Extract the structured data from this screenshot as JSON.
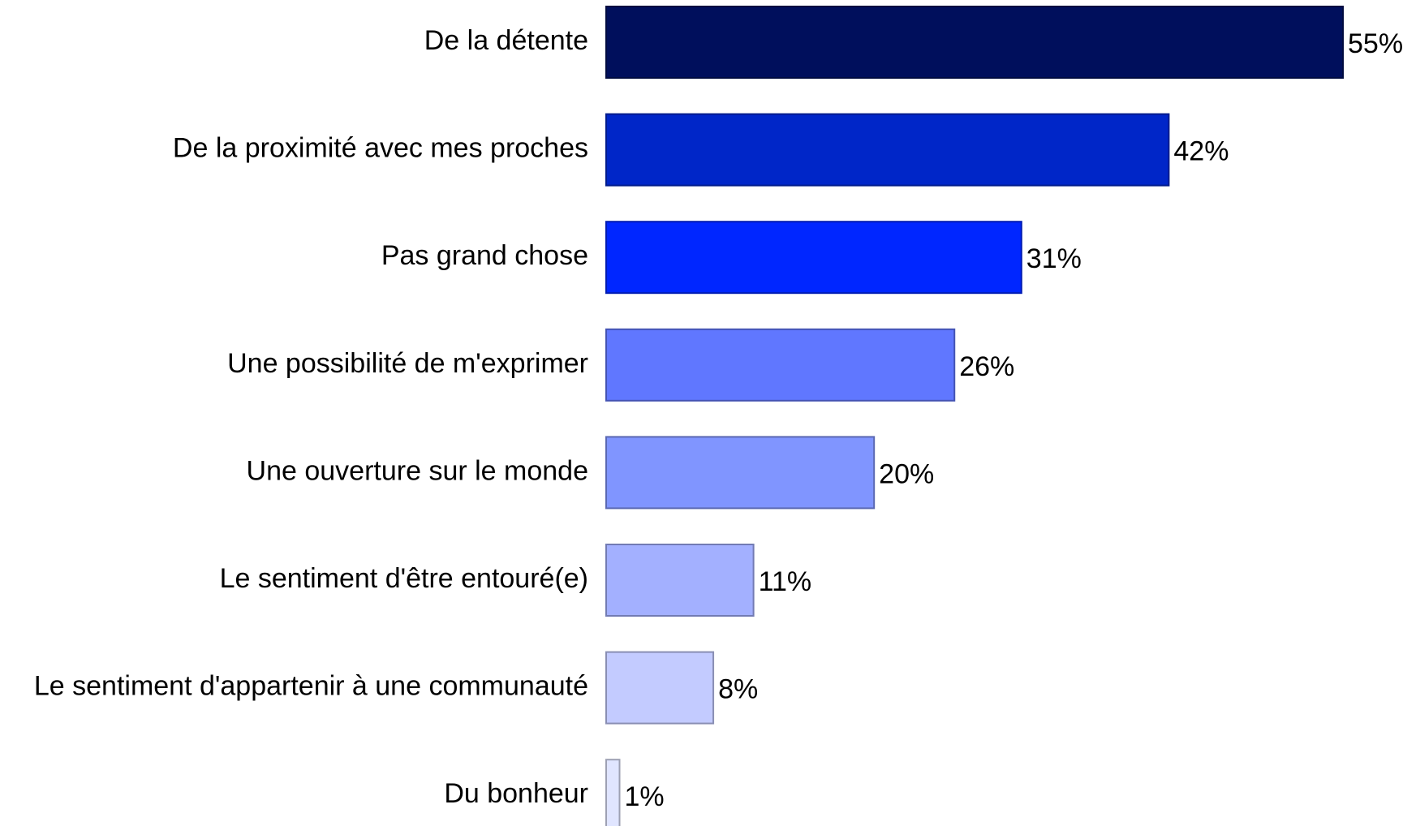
{
  "chart_data": {
    "type": "bar",
    "orientation": "horizontal",
    "categories": [
      "De la détente",
      "De la proximité avec mes proches",
      "Pas grand chose",
      "Une possibilité de m'exprimer",
      "Une ouverture sur le monde",
      "Le sentiment d'être entouré(e)",
      "Le sentiment d'appartenir à une communauté",
      "Du bonheur"
    ],
    "values": [
      55,
      42,
      31,
      26,
      20,
      11,
      8,
      1
    ],
    "value_labels": [
      "55%",
      "42%",
      "31%",
      "26%",
      "20%",
      "11%",
      "8%",
      "1%"
    ],
    "colors": [
      "#000f5c",
      "#0026c8",
      "#0026ff",
      "#6077ff",
      "#8095ff",
      "#a3b0ff",
      "#c3cbff",
      "#e0e5ff"
    ]
  }
}
